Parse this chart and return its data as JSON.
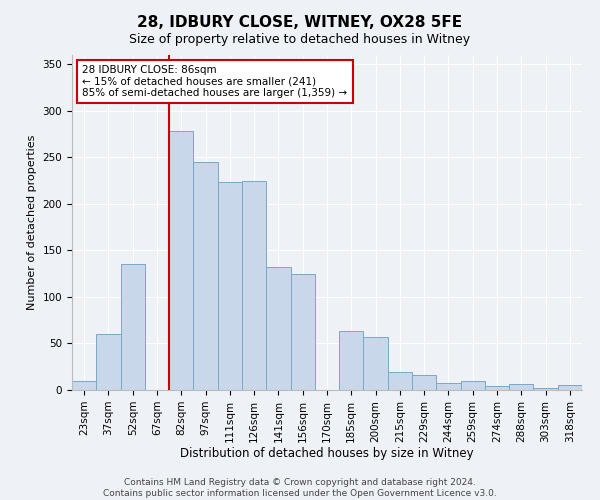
{
  "title": "28, IDBURY CLOSE, WITNEY, OX28 5FE",
  "subtitle": "Size of property relative to detached houses in Witney",
  "xlabel": "Distribution of detached houses by size in Witney",
  "ylabel": "Number of detached properties",
  "bin_labels": [
    "23sqm",
    "37sqm",
    "52sqm",
    "67sqm",
    "82sqm",
    "97sqm",
    "111sqm",
    "126sqm",
    "141sqm",
    "156sqm",
    "170sqm",
    "185sqm",
    "200sqm",
    "215sqm",
    "229sqm",
    "244sqm",
    "259sqm",
    "274sqm",
    "288sqm",
    "303sqm",
    "318sqm"
  ],
  "bar_heights": [
    10,
    60,
    135,
    0,
    278,
    245,
    224,
    225,
    132,
    125,
    0,
    63,
    57,
    19,
    16,
    8,
    10,
    4,
    6,
    2,
    5
  ],
  "bar_color": "#c8d8ea",
  "bar_edge_color": "#7aa8c8",
  "vline_color": "#cc0000",
  "vline_x_index": 4,
  "annotation_title": "28 IDBURY CLOSE: 86sqm",
  "annotation_line1": "← 15% of detached houses are smaller (241)",
  "annotation_line2": "85% of semi-detached houses are larger (1,359) →",
  "annotation_box_color": "#ffffff",
  "annotation_border_color": "#cc0000",
  "ylim": [
    0,
    360
  ],
  "yticks": [
    0,
    50,
    100,
    150,
    200,
    250,
    300,
    350
  ],
  "footer1": "Contains HM Land Registry data © Crown copyright and database right 2024.",
  "footer2": "Contains public sector information licensed under the Open Government Licence v3.0.",
  "background_color": "#eef2f7",
  "grid_color": "#ffffff",
  "title_fontsize": 11,
  "subtitle_fontsize": 9,
  "ylabel_fontsize": 8,
  "xlabel_fontsize": 8.5,
  "tick_fontsize": 7.5,
  "footer_fontsize": 6.5
}
